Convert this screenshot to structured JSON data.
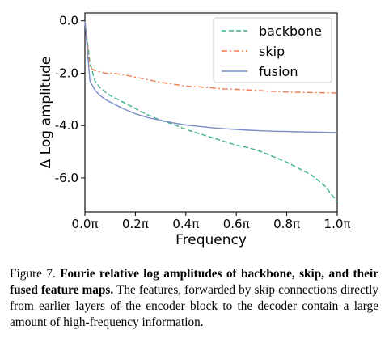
{
  "chart_data": {
    "type": "line",
    "xlabel": "Frequency",
    "ylabel": "Δ Log amplitude",
    "xlim": [
      0.0,
      1.0
    ],
    "ylim": [
      -7.3,
      0.3
    ],
    "xticks": [
      0.0,
      0.2,
      0.4,
      0.6,
      0.8,
      1.0
    ],
    "xtick_labels": [
      "0.0π",
      "0.2π",
      "0.4π",
      "0.6π",
      "0.8π",
      "1.0π"
    ],
    "yticks": [
      0.0,
      -2.0,
      -4.0,
      -6.0
    ],
    "ytick_labels": [
      "0.0",
      "-2.0",
      "-4.0",
      "-6.0"
    ],
    "grid": false,
    "legend_position": "top-right",
    "series": [
      {
        "name": "backbone",
        "color": "#3cb08a",
        "style": "dashed",
        "x": [
          0.0,
          0.02,
          0.04,
          0.06,
          0.08,
          0.1,
          0.12,
          0.15,
          0.2,
          0.25,
          0.3,
          0.35,
          0.4,
          0.45,
          0.5,
          0.55,
          0.6,
          0.65,
          0.7,
          0.75,
          0.8,
          0.85,
          0.9,
          0.95,
          1.0
        ],
        "y": [
          0.0,
          -1.6,
          -2.3,
          -2.55,
          -2.72,
          -2.85,
          -2.95,
          -3.1,
          -3.35,
          -3.6,
          -3.8,
          -3.95,
          -4.15,
          -4.3,
          -4.45,
          -4.6,
          -4.75,
          -4.85,
          -5.0,
          -5.2,
          -5.4,
          -5.65,
          -5.9,
          -6.3,
          -6.9
        ]
      },
      {
        "name": "skip",
        "color": "#f07a4f",
        "style": "dashdot",
        "x": [
          0.0,
          0.02,
          0.04,
          0.06,
          0.08,
          0.1,
          0.15,
          0.2,
          0.25,
          0.3,
          0.35,
          0.4,
          0.45,
          0.5,
          0.55,
          0.6,
          0.65,
          0.7,
          0.75,
          0.8,
          0.85,
          0.9,
          0.95,
          1.0
        ],
        "y": [
          0.0,
          -1.8,
          -1.9,
          -1.95,
          -2.0,
          -2.0,
          -2.05,
          -2.15,
          -2.25,
          -2.35,
          -2.42,
          -2.5,
          -2.52,
          -2.56,
          -2.6,
          -2.62,
          -2.64,
          -2.67,
          -2.7,
          -2.72,
          -2.73,
          -2.74,
          -2.75,
          -2.76
        ]
      },
      {
        "name": "fusion",
        "color": "#7b8dc9",
        "style": "solid",
        "x": [
          0.0,
          0.02,
          0.04,
          0.06,
          0.08,
          0.1,
          0.12,
          0.15,
          0.2,
          0.25,
          0.3,
          0.35,
          0.4,
          0.45,
          0.5,
          0.55,
          0.6,
          0.65,
          0.7,
          0.75,
          0.8,
          0.85,
          0.9,
          0.95,
          1.0
        ],
        "y": [
          0.0,
          -2.3,
          -2.65,
          -2.85,
          -3.0,
          -3.1,
          -3.2,
          -3.35,
          -3.55,
          -3.7,
          -3.8,
          -3.9,
          -3.98,
          -4.03,
          -4.08,
          -4.12,
          -4.15,
          -4.18,
          -4.2,
          -4.22,
          -4.23,
          -4.24,
          -4.25,
          -4.26,
          -4.27
        ]
      }
    ]
  },
  "caption": {
    "label": "Figure 7.",
    "title": "Fourie relative log amplitudes of backbone, skip, and their fused feature maps.",
    "body": "The features, forwarded by skip connections directly from earlier layers of the encoder block to the decoder contain a large amount of high-frequency information."
  }
}
